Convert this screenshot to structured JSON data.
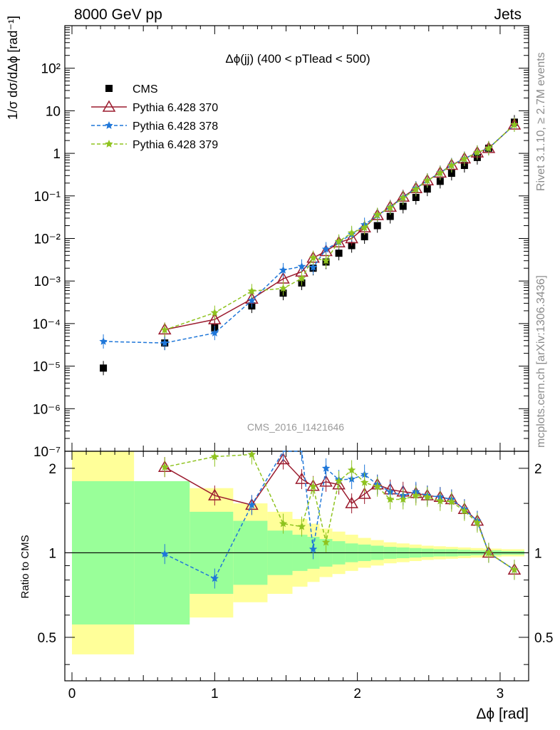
{
  "header": {
    "left": "8000 GeV pp",
    "right": "Jets",
    "side_top": "Rivet 3.1.10, ≥ 2.7M events",
    "side_bottom": "mcplots.cern.ch [arXiv:1306.3436]"
  },
  "chart_data": {
    "type": "scatter",
    "title": "Δϕ(jj) (400 < pTlead <  500)",
    "watermark": "CMS_2016_I1421646",
    "xlabel": "Δϕ [rad]",
    "ylabel_top": "1/σ dσ/dΔϕ [rad⁻¹]",
    "ylabel_bottom": "Ratio to CMS",
    "xlim": [
      -0.05,
      3.2
    ],
    "ylim_top": [
      1e-07,
      1000
    ],
    "yscale_top": "log",
    "ylim_bottom": [
      0.35,
      2.3
    ],
    "yscale_bottom": "log",
    "legend_position": "top-left",
    "x_ticks": [
      "0",
      "1",
      "2",
      "3"
    ],
    "bottom_ticks": [
      "0.5",
      "1",
      "2"
    ],
    "top_ticks": [
      "10⁻⁷",
      "10⁻⁶",
      "10⁻⁵",
      "10⁻⁴",
      "10⁻³",
      "10⁻²",
      "10⁻¹",
      "1",
      "10",
      "10²"
    ],
    "data_x": [
      0.22,
      0.65,
      1.0,
      1.26,
      1.48,
      1.61,
      1.69,
      1.78,
      1.87,
      1.96,
      2.05,
      2.14,
      2.23,
      2.32,
      2.41,
      2.49,
      2.58,
      2.66,
      2.75,
      2.84,
      2.92,
      3.1
    ],
    "series": [
      {
        "name": "CMS",
        "color": "#000000",
        "marker": "square",
        "values": [
          9e-06,
          3.5e-05,
          8e-05,
          0.00026,
          0.00052,
          0.0009,
          0.002,
          0.0028,
          0.0045,
          0.0068,
          0.011,
          0.02,
          0.033,
          0.057,
          0.092,
          0.145,
          0.22,
          0.34,
          0.52,
          0.8,
          1.32,
          5.4
        ],
        "ratio_band_inner": [
          1.8,
          1.8,
          1.4,
          1.3,
          1.2,
          1.16,
          1.14,
          1.12,
          1.1,
          1.08,
          1.07,
          1.06,
          1.05,
          1.045,
          1.04,
          1.035,
          1.03,
          1.03,
          1.025,
          1.02,
          1.02,
          1.015
        ],
        "ratio_band_outer": [
          2.3,
          1.75,
          1.7,
          1.5,
          1.4,
          1.32,
          1.27,
          1.22,
          1.19,
          1.16,
          1.13,
          1.11,
          1.09,
          1.08,
          1.07,
          1.06,
          1.055,
          1.05,
          1.045,
          1.04,
          1.035,
          1.03
        ]
      },
      {
        "name": "Pythia 6.428 370",
        "color": "#9b1b2e",
        "marker": "triangle-open",
        "line": "solid",
        "values": [
          null,
          7.2e-05,
          0.000125,
          0.00038,
          0.00113,
          0.00165,
          0.0035,
          0.005,
          0.008,
          0.01,
          0.018,
          0.035,
          0.055,
          0.095,
          0.15,
          0.23,
          0.35,
          0.53,
          0.75,
          1.04,
          1.32,
          4.7
        ],
        "ratio": [
          null,
          2.02,
          1.6,
          1.48,
          2.15,
          1.83,
          1.73,
          1.79,
          1.75,
          1.5,
          1.62,
          1.75,
          1.68,
          1.65,
          1.63,
          1.6,
          1.58,
          1.55,
          1.43,
          1.3,
          1.0,
          0.87
        ]
      },
      {
        "name": "Pythia 6.428 378",
        "color": "#1f77d9",
        "marker": "star",
        "line": "dashed",
        "values": [
          3.8e-05,
          3.5e-05,
          6e-05,
          0.00035,
          0.0018,
          0.0022,
          0.0021,
          0.0056,
          0.0082,
          0.0125,
          0.021,
          0.035,
          0.054,
          0.092,
          0.15,
          0.23,
          0.35,
          0.53,
          0.75,
          1.05,
          1.32,
          4.7
        ],
        "ratio": [
          null,
          0.99,
          0.81,
          1.48,
          3.1,
          2.5,
          1.03,
          2.0,
          1.82,
          1.83,
          1.9,
          1.75,
          1.65,
          1.6,
          1.65,
          1.6,
          1.58,
          1.55,
          1.43,
          1.3,
          1.0,
          0.87
        ]
      },
      {
        "name": "Pythia 6.428 379",
        "color": "#8fc31f",
        "marker": "star",
        "line": "dashed",
        "values": [
          null,
          7.1e-05,
          0.00018,
          0.00058,
          0.00067,
          0.00115,
          0.0035,
          0.003,
          0.0085,
          0.0135,
          0.018,
          0.036,
          0.053,
          0.09,
          0.143,
          0.23,
          0.345,
          0.52,
          0.74,
          1.05,
          1.32,
          4.7
        ],
        "ratio": [
          null,
          2.02,
          2.2,
          2.24,
          1.27,
          1.24,
          1.72,
          1.09,
          1.8,
          1.97,
          1.78,
          1.72,
          1.55,
          1.55,
          1.6,
          1.58,
          1.53,
          1.52,
          1.41,
          1.28,
          1.0,
          0.87
        ]
      }
    ]
  }
}
